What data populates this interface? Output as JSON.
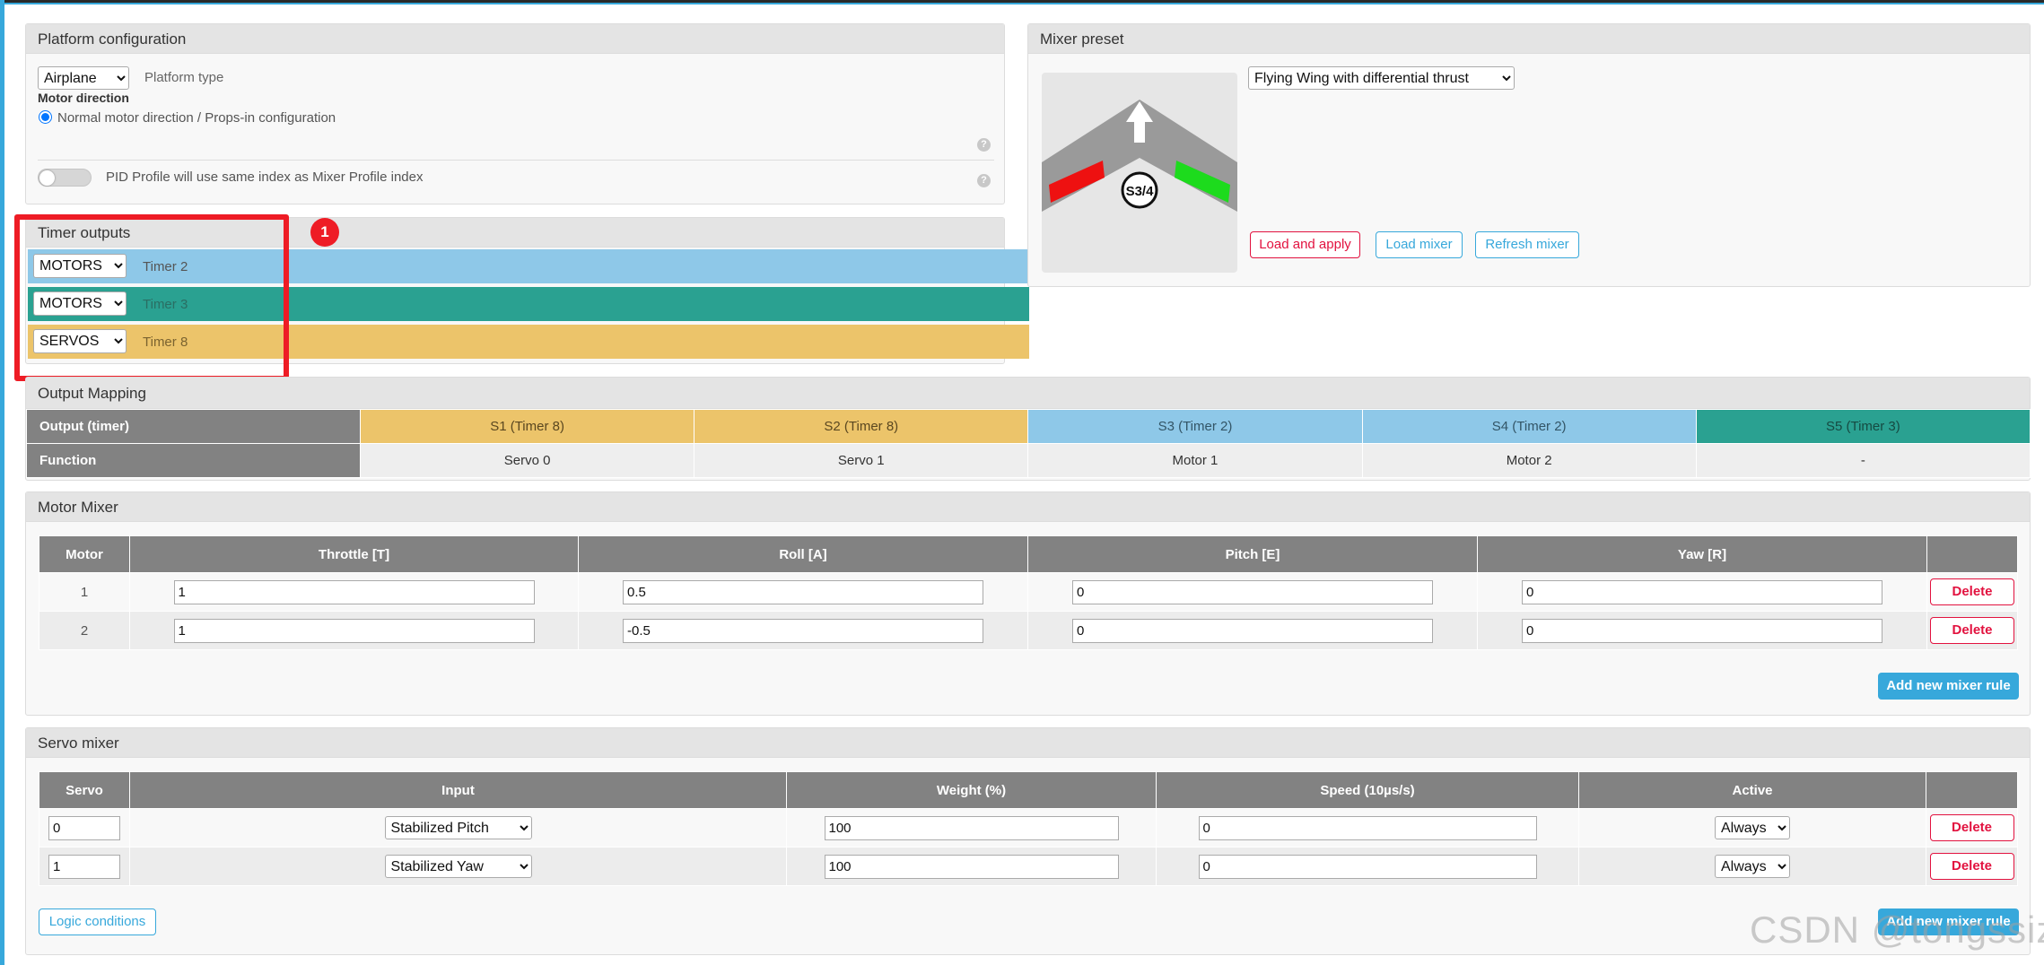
{
  "colors": {
    "accent": "#37a8db",
    "danger": "#e2123f",
    "motors_timer2": "#8ec8e8",
    "motors_timer3": "#2aa191",
    "servos_timer8": "#ecc46a",
    "annotation": "#ee1c25"
  },
  "platform": {
    "title": "Platform configuration",
    "platform_select": "Airplane",
    "platform_label": "Platform type",
    "motor_direction_label": "Motor direction",
    "motor_direction_option": "Normal motor direction / Props-in configuration",
    "pid_label": "PID Profile will use same index as Mixer Profile index",
    "help_glyph": "?"
  },
  "timers": {
    "title": "Timer outputs",
    "rows": [
      {
        "mode": "MOTORS",
        "label": "Timer 2"
      },
      {
        "mode": "MOTORS",
        "label": "Timer 3"
      },
      {
        "mode": "SERVOS",
        "label": "Timer 8"
      }
    ]
  },
  "annotation": {
    "badge": "1"
  },
  "preset": {
    "title": "Mixer preset",
    "select": "Flying Wing with differential thrust",
    "diagram_label": "S3/4",
    "load_apply": "Load and apply",
    "load_mixer": "Load mixer",
    "refresh_mixer": "Refresh mixer"
  },
  "mapping": {
    "title": "Output Mapping",
    "row1_header": "Output (timer)",
    "row2_header": "Function",
    "outputs": [
      "S1 (Timer 8)",
      "S2 (Timer 8)",
      "S3 (Timer 2)",
      "S4 (Timer 2)",
      "S5 (Timer 3)"
    ],
    "functions": [
      "Servo 0",
      "Servo 1",
      "Motor 1",
      "Motor 2",
      "-"
    ]
  },
  "motor_mixer": {
    "title": "Motor Mixer",
    "headers": [
      "Motor",
      "Throttle [T]",
      "Roll [A]",
      "Pitch [E]",
      "Yaw [R]"
    ],
    "rows": [
      {
        "motor": "1",
        "throttle": "1",
        "roll": "0.5",
        "pitch": "0",
        "yaw": "0"
      },
      {
        "motor": "2",
        "throttle": "1",
        "roll": "-0.5",
        "pitch": "0",
        "yaw": "0"
      }
    ],
    "delete": "Delete",
    "add": "Add new mixer rule"
  },
  "servo_mixer": {
    "title": "Servo mixer",
    "headers": [
      "Servo",
      "Input",
      "Weight (%)",
      "Speed (10µs/s)",
      "Active"
    ],
    "rows": [
      {
        "servo": "0",
        "input": "Stabilized Pitch",
        "weight": "100",
        "speed": "0",
        "active": "Always"
      },
      {
        "servo": "1",
        "input": "Stabilized Yaw",
        "weight": "100",
        "speed": "0",
        "active": "Always"
      }
    ],
    "delete": "Delete",
    "add": "Add new mixer rule",
    "logic": "Logic conditions"
  },
  "watermark": "CSDN @tongssiz"
}
